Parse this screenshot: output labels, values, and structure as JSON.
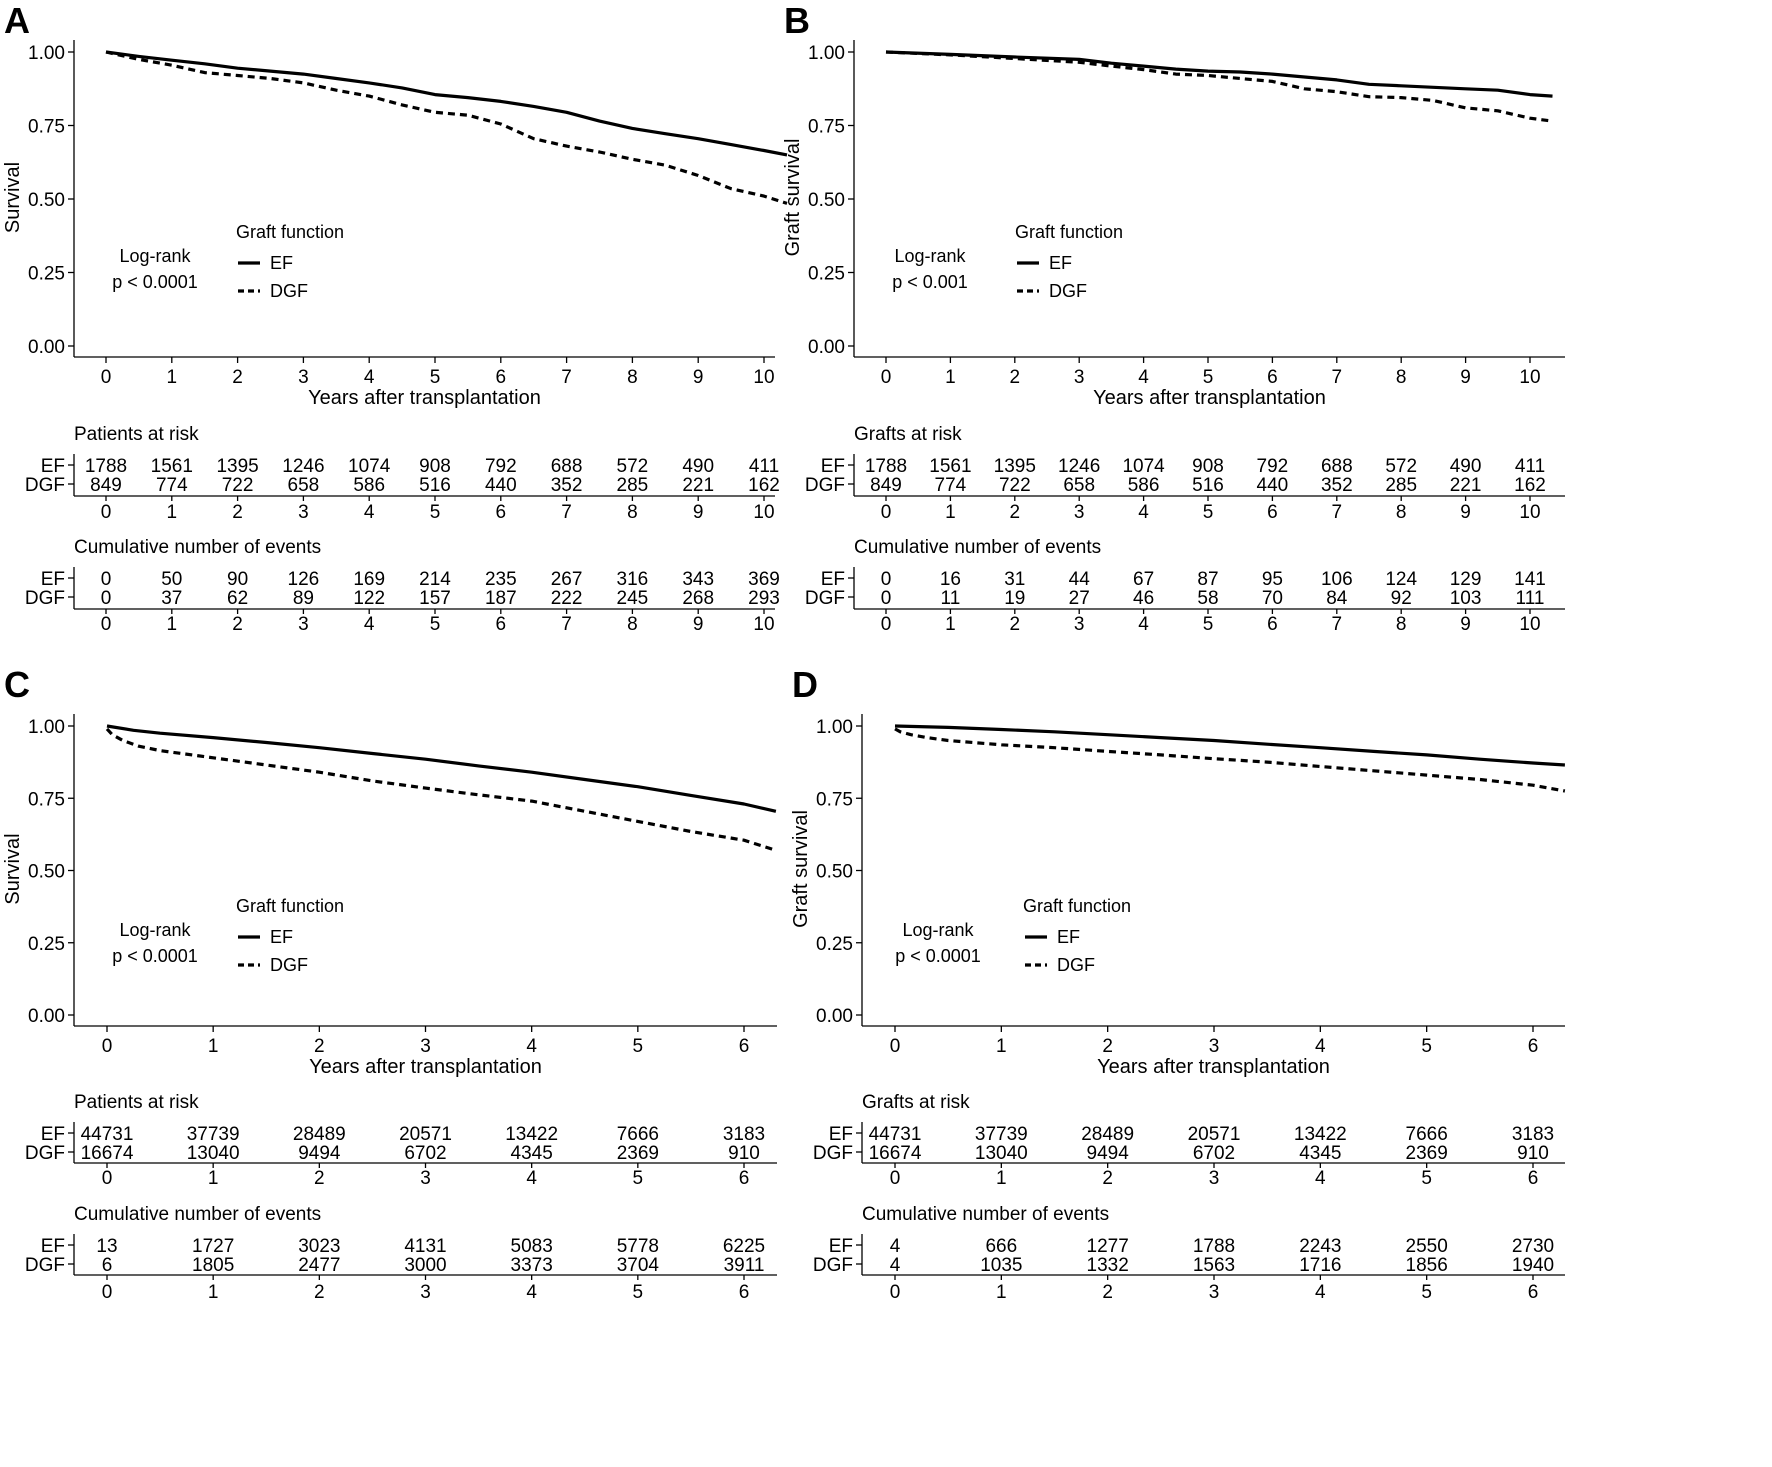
{
  "chart_data": [
    {
      "type": "line",
      "panel": "A",
      "ylabel": "Survival",
      "xlabel": "Years after transplantation",
      "xlim": [
        0,
        10.35
      ],
      "ylim": [
        0,
        1
      ],
      "x_ticks": [
        "0",
        "1",
        "2",
        "3",
        "4",
        "5",
        "6",
        "7",
        "8",
        "9",
        "10"
      ],
      "y_ticks": [
        "0.00",
        "0.25",
        "0.50",
        "0.75",
        "1.00"
      ],
      "legend_title": "Graft function",
      "logrank": [
        "Log-rank",
        "p < 0.0001"
      ],
      "series": [
        {
          "name": "EF",
          "style": "solid",
          "x": [
            0,
            0.5,
            1,
            1.5,
            2,
            2.5,
            3,
            3.5,
            4,
            4.5,
            5,
            5.5,
            6,
            6.5,
            7,
            7.5,
            8,
            8.5,
            9,
            9.5,
            10,
            10.35
          ],
          "y": [
            1.0,
            0.985,
            0.972,
            0.96,
            0.945,
            0.935,
            0.925,
            0.91,
            0.895,
            0.878,
            0.855,
            0.845,
            0.832,
            0.815,
            0.795,
            0.765,
            0.74,
            0.722,
            0.705,
            0.685,
            0.665,
            0.65
          ]
        },
        {
          "name": "DGF",
          "style": "dashed",
          "x": [
            0,
            0.5,
            1,
            1.5,
            2,
            2.5,
            3,
            3.5,
            4,
            4.5,
            5,
            5.5,
            6,
            6.5,
            7,
            7.5,
            8,
            8.5,
            9,
            9.5,
            10,
            10.35
          ],
          "y": [
            1.0,
            0.975,
            0.955,
            0.93,
            0.92,
            0.91,
            0.895,
            0.87,
            0.85,
            0.82,
            0.795,
            0.785,
            0.755,
            0.705,
            0.68,
            0.66,
            0.635,
            0.615,
            0.58,
            0.535,
            0.51,
            0.485
          ]
        }
      ],
      "risk_table": {
        "title": "Patients at risk",
        "rows": [
          {
            "label": "EF",
            "values": [
              "1788",
              "1561",
              "1395",
              "1246",
              "1074",
              "908",
              "792",
              "688",
              "572",
              "490",
              "411"
            ]
          },
          {
            "label": "DGF",
            "values": [
              "849",
              "774",
              "722",
              "658",
              "586",
              "516",
              "440",
              "352",
              "285",
              "221",
              "162"
            ]
          }
        ]
      },
      "events_table": {
        "title": "Cumulative number of events",
        "rows": [
          {
            "label": "EF",
            "values": [
              "0",
              "50",
              "90",
              "126",
              "169",
              "214",
              "235",
              "267",
              "316",
              "343",
              "369"
            ]
          },
          {
            "label": "DGF",
            "values": [
              "0",
              "37",
              "62",
              "89",
              "122",
              "157",
              "187",
              "222",
              "245",
              "268",
              "293"
            ]
          }
        ]
      }
    },
    {
      "type": "line",
      "panel": "B",
      "ylabel": "Graft survival",
      "xlabel": "Years after transplantation",
      "xlim": [
        0,
        10.35
      ],
      "ylim": [
        0,
        1
      ],
      "x_ticks": [
        "0",
        "1",
        "2",
        "3",
        "4",
        "5",
        "6",
        "7",
        "8",
        "9",
        "10"
      ],
      "y_ticks": [
        "0.00",
        "0.25",
        "0.50",
        "0.75",
        "1.00"
      ],
      "legend_title": "Graft function",
      "logrank": [
        "Log-rank",
        "p < 0.001"
      ],
      "series": [
        {
          "name": "EF",
          "style": "solid",
          "x": [
            0,
            1,
            2,
            3,
            3.5,
            4,
            4.5,
            5,
            5.5,
            6,
            6.5,
            7,
            7.5,
            8,
            8.5,
            9,
            9.5,
            10,
            10.35
          ],
          "y": [
            1.0,
            0.992,
            0.983,
            0.975,
            0.962,
            0.952,
            0.942,
            0.935,
            0.932,
            0.925,
            0.915,
            0.905,
            0.89,
            0.885,
            0.88,
            0.875,
            0.87,
            0.855,
            0.85
          ]
        },
        {
          "name": "DGF",
          "style": "dashed",
          "x": [
            0,
            1,
            2,
            3,
            3.5,
            4,
            4.5,
            5,
            5.5,
            6,
            6.5,
            7,
            7.5,
            8,
            8.5,
            9,
            9.5,
            10,
            10.35
          ],
          "y": [
            1.0,
            0.99,
            0.978,
            0.965,
            0.952,
            0.94,
            0.925,
            0.92,
            0.91,
            0.9,
            0.875,
            0.865,
            0.848,
            0.845,
            0.835,
            0.81,
            0.8,
            0.775,
            0.765
          ]
        }
      ],
      "risk_table": {
        "title": "Grafts at risk",
        "rows": [
          {
            "label": "EF",
            "values": [
              "1788",
              "1561",
              "1395",
              "1246",
              "1074",
              "908",
              "792",
              "688",
              "572",
              "490",
              "411"
            ]
          },
          {
            "label": "DGF",
            "values": [
              "849",
              "774",
              "722",
              "658",
              "586",
              "516",
              "440",
              "352",
              "285",
              "221",
              "162"
            ]
          }
        ]
      },
      "events_table": {
        "title": "Cumulative number of events",
        "rows": [
          {
            "label": "EF",
            "values": [
              "0",
              "16",
              "31",
              "44",
              "67",
              "87",
              "95",
              "106",
              "124",
              "129",
              "141"
            ]
          },
          {
            "label": "DGF",
            "values": [
              "0",
              "11",
              "19",
              "27",
              "46",
              "58",
              "70",
              "84",
              "92",
              "103",
              "111"
            ]
          }
        ]
      }
    },
    {
      "type": "line",
      "panel": "C",
      "ylabel": "Survival",
      "xlabel": "Years after transplantation",
      "xlim": [
        0,
        6.3
      ],
      "ylim": [
        0,
        1
      ],
      "x_ticks": [
        "0",
        "1",
        "2",
        "3",
        "4",
        "5",
        "6"
      ],
      "y_ticks": [
        "0.00",
        "0.25",
        "0.50",
        "0.75",
        "1.00"
      ],
      "legend_title": "Graft function",
      "logrank": [
        "Log-rank",
        "p < 0.0001"
      ],
      "series": [
        {
          "name": "EF",
          "style": "solid",
          "x": [
            0,
            0.25,
            0.5,
            1,
            1.5,
            2,
            2.5,
            3,
            3.5,
            4,
            4.5,
            5,
            5.5,
            6,
            6.3
          ],
          "y": [
            1.0,
            0.985,
            0.975,
            0.96,
            0.943,
            0.925,
            0.905,
            0.885,
            0.862,
            0.84,
            0.815,
            0.79,
            0.76,
            0.73,
            0.705
          ]
        },
        {
          "name": "DGF",
          "style": "dashed",
          "x": [
            0,
            0.05,
            0.15,
            0.3,
            0.5,
            1,
            1.5,
            2,
            2.5,
            3,
            3.5,
            4,
            4.5,
            5,
            5.5,
            6,
            6.3
          ],
          "y": [
            0.99,
            0.97,
            0.95,
            0.93,
            0.915,
            0.89,
            0.865,
            0.84,
            0.81,
            0.785,
            0.762,
            0.74,
            0.705,
            0.67,
            0.635,
            0.605,
            0.57
          ]
        }
      ],
      "risk_table": {
        "title": "Patients at risk",
        "rows": [
          {
            "label": "EF",
            "values": [
              "44731",
              "37739",
              "28489",
              "20571",
              "13422",
              "7666",
              "3183"
            ]
          },
          {
            "label": "DGF",
            "values": [
              "16674",
              "13040",
              "9494",
              "6702",
              "4345",
              "2369",
              "910"
            ]
          }
        ]
      },
      "events_table": {
        "title": "Cumulative number of events",
        "rows": [
          {
            "label": "EF",
            "values": [
              "13",
              "1727",
              "3023",
              "4131",
              "5083",
              "5778",
              "6225"
            ]
          },
          {
            "label": "DGF",
            "values": [
              "6",
              "1805",
              "2477",
              "3000",
              "3373",
              "3704",
              "3911"
            ]
          }
        ]
      }
    },
    {
      "type": "line",
      "panel": "D",
      "ylabel": "Graft survival",
      "xlabel": "Years after transplantation",
      "xlim": [
        0,
        6.3
      ],
      "ylim": [
        0,
        1
      ],
      "x_ticks": [
        "0",
        "1",
        "2",
        "3",
        "4",
        "5",
        "6"
      ],
      "y_ticks": [
        "0.00",
        "0.25",
        "0.50",
        "0.75",
        "1.00"
      ],
      "legend_title": "Graft function",
      "logrank": [
        "Log-rank",
        "p < 0.0001"
      ],
      "series": [
        {
          "name": "EF",
          "style": "solid",
          "x": [
            0,
            0.5,
            1,
            1.5,
            2,
            2.5,
            3,
            3.5,
            4,
            4.5,
            5,
            5.5,
            6,
            6.3
          ],
          "y": [
            1.0,
            0.995,
            0.988,
            0.98,
            0.97,
            0.96,
            0.95,
            0.937,
            0.925,
            0.912,
            0.9,
            0.885,
            0.872,
            0.865
          ]
        },
        {
          "name": "DGF",
          "style": "dashed",
          "x": [
            0,
            0.05,
            0.15,
            0.3,
            0.5,
            1,
            1.5,
            2,
            2.5,
            3,
            3.5,
            4,
            4.5,
            5,
            5.5,
            6,
            6.3
          ],
          "y": [
            0.99,
            0.98,
            0.97,
            0.96,
            0.95,
            0.935,
            0.925,
            0.912,
            0.9,
            0.887,
            0.875,
            0.86,
            0.845,
            0.83,
            0.815,
            0.795,
            0.775
          ]
        }
      ],
      "risk_table": {
        "title": "Grafts at risk",
        "rows": [
          {
            "label": "EF",
            "values": [
              "44731",
              "37739",
              "28489",
              "20571",
              "13422",
              "7666",
              "3183"
            ]
          },
          {
            "label": "DGF",
            "values": [
              "16674",
              "13040",
              "9494",
              "6702",
              "4345",
              "2369",
              "910"
            ]
          }
        ]
      },
      "events_table": {
        "title": "Cumulative number of events",
        "rows": [
          {
            "label": "EF",
            "values": [
              "4",
              "666",
              "1277",
              "1788",
              "2243",
              "2550",
              "2730"
            ]
          },
          {
            "label": "DGF",
            "values": [
              "4",
              "1035",
              "1332",
              "1563",
              "1716",
              "1856",
              "1940"
            ]
          }
        ]
      }
    }
  ]
}
